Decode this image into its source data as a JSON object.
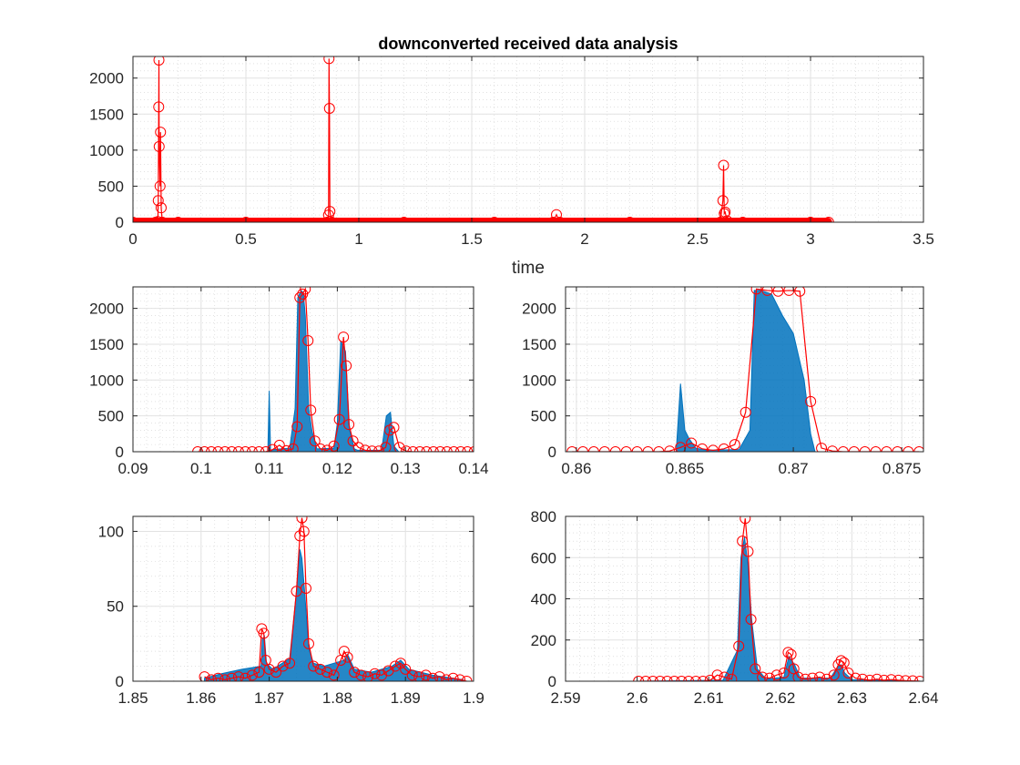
{
  "figure": {
    "title": "downconverted received data analysis"
  },
  "chart_data": [
    {
      "type": "line",
      "xlabel": "time",
      "ylabel": "",
      "xlim": [
        0,
        3.5
      ],
      "ylim": [
        0,
        2300
      ],
      "xticks": [
        0,
        0.5,
        1,
        1.5,
        2,
        2.5,
        3,
        3.5
      ],
      "yticks": [
        0,
        500,
        1000,
        1500,
        2000
      ],
      "grid": true,
      "series": [
        {
          "style": "red-line-circle-markers",
          "color": "#ff0000",
          "x": [
            0,
            0.1,
            0.11,
            0.112,
            0.114,
            0.115,
            0.116,
            0.12,
            0.122,
            0.125,
            0.13,
            0.2,
            0.5,
            0.86,
            0.866,
            0.868,
            0.87,
            0.872,
            0.88,
            1.2,
            1.6,
            1.86,
            1.875,
            1.89,
            2.2,
            2.6,
            2.612,
            2.615,
            2.618,
            2.622,
            2.63,
            2.7,
            3.0,
            3.08
          ],
          "y": [
            0,
            0,
            10,
            300,
            1600,
            2250,
            1050,
            500,
            1250,
            200,
            0,
            0,
            0,
            0,
            100,
            2270,
            1580,
            150,
            0,
            0,
            0,
            0,
            105,
            0,
            0,
            0,
            300,
            790,
            120,
            140,
            20,
            0,
            0,
            0
          ]
        }
      ]
    },
    {
      "type": "line",
      "xlabel": "",
      "ylabel": "",
      "xlim": [
        0.09,
        0.14
      ],
      "ylim": [
        0,
        2300
      ],
      "xticks": [
        0.09,
        0.1,
        0.11,
        0.12,
        0.13,
        0.14
      ],
      "yticks": [
        0,
        500,
        1000,
        1500,
        2000
      ],
      "grid": true,
      "series": [
        {
          "style": "blue-filled-signal",
          "color": "#0072bd",
          "x": [
            0.1,
            0.1098,
            0.11,
            0.1102,
            0.1105,
            0.113,
            0.1138,
            0.1142,
            0.1147,
            0.115,
            0.1153,
            0.1158,
            0.1163,
            0.117,
            0.1195,
            0.12,
            0.1205,
            0.1212,
            0.1218,
            0.1225,
            0.123,
            0.1265,
            0.1272,
            0.1278,
            0.1283,
            0.129,
            0.14
          ],
          "y": [
            0,
            0,
            850,
            0,
            30,
            50,
            600,
            2150,
            2250,
            2220,
            1900,
            600,
            280,
            40,
            50,
            400,
            1550,
            1400,
            300,
            40,
            20,
            20,
            500,
            550,
            80,
            0,
            0
          ]
        },
        {
          "style": "red-line-circle-markers",
          "color": "#ff0000",
          "x": [
            0.0995,
            0.1005,
            0.1015,
            0.1025,
            0.1035,
            0.1045,
            0.1055,
            0.1065,
            0.1075,
            0.1085,
            0.1095,
            0.1105,
            0.1115,
            0.1125,
            0.1135,
            0.1141,
            0.1145,
            0.1149,
            0.1153,
            0.1157,
            0.1161,
            0.1167,
            0.1175,
            0.1185,
            0.1195,
            0.1203,
            0.1209,
            0.1213,
            0.1217,
            0.1223,
            0.1231,
            0.1241,
            0.1251,
            0.1261,
            0.1271,
            0.1277,
            0.1283,
            0.1291,
            0.1301,
            0.1311,
            0.1321,
            0.1331,
            0.1341,
            0.1351,
            0.1361,
            0.1371,
            0.1381,
            0.1391,
            0.1401
          ],
          "y": [
            0,
            0,
            0,
            0,
            0,
            0,
            0,
            0,
            0,
            0,
            0,
            30,
            90,
            15,
            40,
            350,
            2150,
            2200,
            2270,
            1550,
            580,
            150,
            40,
            20,
            80,
            450,
            1600,
            1200,
            380,
            150,
            60,
            20,
            10,
            10,
            60,
            300,
            340,
            60,
            10,
            0,
            0,
            0,
            0,
            0,
            0,
            0,
            0,
            0,
            0
          ]
        }
      ]
    },
    {
      "type": "line",
      "xlabel": "",
      "ylabel": "",
      "xlim": [
        0.8595,
        0.876
      ],
      "ylim": [
        0,
        2300
      ],
      "xticks": [
        0.86,
        0.865,
        0.87,
        0.875
      ],
      "yticks": [
        0,
        500,
        1000,
        1500,
        2000
      ],
      "grid": true,
      "series": [
        {
          "style": "blue-filled-signal",
          "color": "#0072bd",
          "x": [
            0.86,
            0.8646,
            0.8648,
            0.865,
            0.8652,
            0.8655,
            0.866,
            0.8675,
            0.868,
            0.8682,
            0.8685,
            0.869,
            0.8695,
            0.87,
            0.8705,
            0.8708,
            0.871,
            0.876
          ],
          "y": [
            0,
            0,
            950,
            300,
            180,
            50,
            20,
            30,
            300,
            2250,
            2250,
            2200,
            1900,
            1650,
            1000,
            250,
            0,
            0
          ]
        },
        {
          "style": "red-line-circle-markers",
          "color": "#ff0000",
          "x": [
            0.8598,
            0.8603,
            0.8608,
            0.8613,
            0.8618,
            0.8623,
            0.8628,
            0.8633,
            0.8638,
            0.8643,
            0.8648,
            0.8653,
            0.8658,
            0.8663,
            0.8668,
            0.8673,
            0.8678,
            0.8683,
            0.8688,
            0.8693,
            0.8698,
            0.8703,
            0.8708,
            0.8713,
            0.8718,
            0.8723,
            0.8728,
            0.8733,
            0.8738,
            0.8743,
            0.8748,
            0.8753,
            0.8758
          ],
          "y": [
            0,
            0,
            0,
            0,
            0,
            0,
            0,
            0,
            0,
            10,
            60,
            120,
            40,
            20,
            40,
            100,
            550,
            2270,
            2250,
            2240,
            2250,
            2240,
            700,
            50,
            10,
            0,
            0,
            0,
            0,
            0,
            0,
            0,
            0
          ]
        }
      ]
    },
    {
      "type": "line",
      "xlabel": "",
      "ylabel": "",
      "xlim": [
        1.85,
        1.9
      ],
      "ylim": [
        0,
        110
      ],
      "xticks": [
        1.85,
        1.86,
        1.87,
        1.88,
        1.89,
        1.9
      ],
      "yticks": [
        0,
        50,
        100
      ],
      "grid": true,
      "series": [
        {
          "style": "blue-filled-signal",
          "color": "#0072bd",
          "x": [
            1.8605,
            1.863,
            1.866,
            1.8688,
            1.869,
            1.8693,
            1.8696,
            1.8705,
            1.873,
            1.874,
            1.8745,
            1.8748,
            1.8752,
            1.8758,
            1.8765,
            1.878,
            1.881,
            1.8815,
            1.8825,
            1.885,
            1.888,
            1.8893,
            1.8905,
            1.894,
            1.8985
          ],
          "y": [
            2,
            5,
            8,
            10,
            28,
            30,
            12,
            8,
            15,
            60,
            88,
            82,
            60,
            22,
            12,
            10,
            14,
            18,
            8,
            6,
            10,
            14,
            8,
            4,
            1
          ]
        },
        {
          "style": "red-line-circle-markers",
          "color": "#ff0000",
          "x": [
            1.8605,
            1.8615,
            1.8625,
            1.8635,
            1.8645,
            1.8655,
            1.8665,
            1.8675,
            1.8685,
            1.8689,
            1.8692,
            1.8695,
            1.87,
            1.871,
            1.872,
            1.873,
            1.874,
            1.8745,
            1.8748,
            1.8751,
            1.8754,
            1.8758,
            1.8765,
            1.8775,
            1.8785,
            1.8795,
            1.8805,
            1.881,
            1.8815,
            1.8825,
            1.8835,
            1.8845,
            1.8855,
            1.8865,
            1.8875,
            1.8885,
            1.8893,
            1.89,
            1.891,
            1.892,
            1.893,
            1.894,
            1.895,
            1.896,
            1.897,
            1.898,
            1.899
          ],
          "y": [
            3,
            1,
            2,
            1,
            2,
            3,
            2,
            4,
            6,
            35,
            32,
            14,
            8,
            6,
            10,
            12,
            60,
            97,
            109,
            100,
            62,
            25,
            10,
            8,
            6,
            4,
            14,
            20,
            16,
            6,
            4,
            3,
            5,
            4,
            7,
            10,
            12,
            8,
            4,
            3,
            4,
            2,
            3,
            1,
            2,
            1,
            0
          ]
        }
      ]
    },
    {
      "type": "line",
      "xlabel": "",
      "ylabel": "",
      "xlim": [
        2.59,
        2.64
      ],
      "ylim": [
        0,
        800
      ],
      "xticks": [
        2.59,
        2.6,
        2.61,
        2.62,
        2.63,
        2.64
      ],
      "yticks": [
        0,
        200,
        400,
        600,
        800
      ],
      "grid": true,
      "series": [
        {
          "style": "blue-filled-signal",
          "color": "#0072bd",
          "x": [
            2.6,
            2.612,
            2.614,
            2.6145,
            2.615,
            2.6155,
            2.616,
            2.6168,
            2.618,
            2.6205,
            2.6212,
            2.622,
            2.6228,
            2.627,
            2.628,
            2.6285,
            2.629,
            2.63,
            2.64
          ],
          "y": [
            0,
            5,
            150,
            600,
            700,
            560,
            300,
            60,
            10,
            20,
            120,
            80,
            15,
            15,
            70,
            80,
            40,
            8,
            0
          ]
        },
        {
          "style": "red-line-circle-markers",
          "color": "#ff0000",
          "x": [
            2.6002,
            2.6012,
            2.6022,
            2.6032,
            2.6042,
            2.6052,
            2.6062,
            2.6072,
            2.6082,
            2.6092,
            2.6102,
            2.6112,
            2.6122,
            2.6132,
            2.6142,
            2.6147,
            2.6151,
            2.6155,
            2.6159,
            2.6165,
            2.6175,
            2.6185,
            2.6195,
            2.6205,
            2.6211,
            2.6215,
            2.6219,
            2.6225,
            2.6235,
            2.6245,
            2.6255,
            2.6265,
            2.6275,
            2.6281,
            2.6285,
            2.6289,
            2.6295,
            2.6305,
            2.6315,
            2.6325,
            2.6335,
            2.6345,
            2.6355,
            2.6365,
            2.6375,
            2.6385,
            2.6395
          ],
          "y": [
            0,
            0,
            0,
            0,
            0,
            0,
            0,
            0,
            0,
            0,
            5,
            30,
            20,
            10,
            170,
            680,
            790,
            630,
            300,
            60,
            20,
            15,
            30,
            40,
            140,
            130,
            60,
            20,
            10,
            15,
            20,
            10,
            30,
            80,
            100,
            90,
            40,
            15,
            10,
            5,
            10,
            5,
            8,
            5,
            3,
            2,
            0
          ]
        }
      ]
    }
  ]
}
